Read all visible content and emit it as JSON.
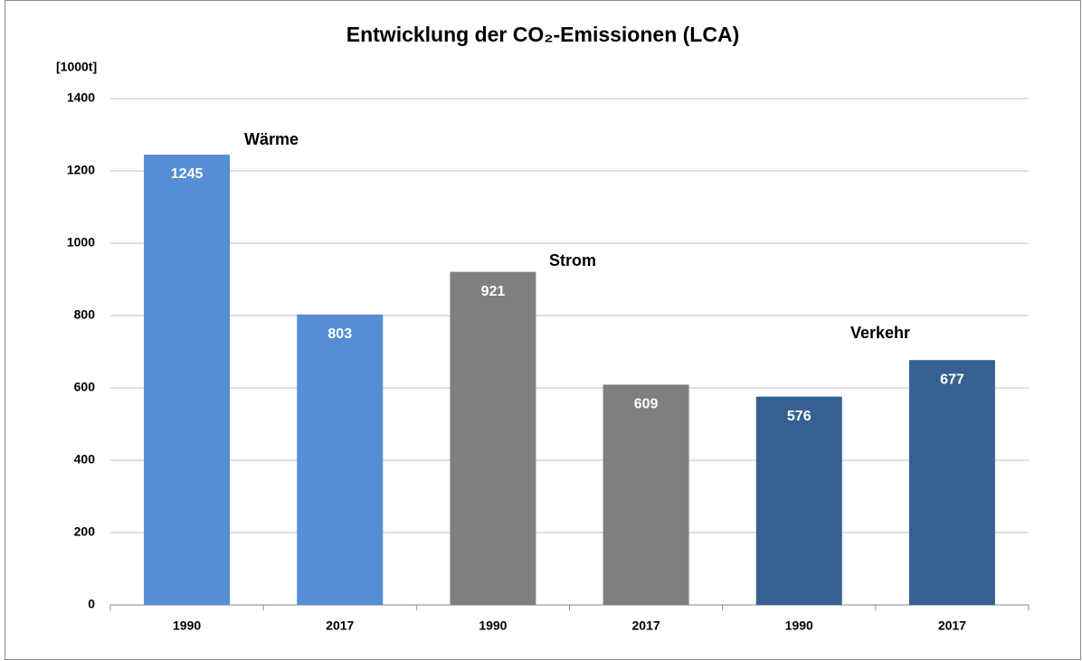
{
  "chart_data": {
    "type": "bar",
    "title": "Entwicklung der CO₂-Emissionen (LCA)",
    "y_label": "[1000t]",
    "categories": [
      "1990",
      "2017",
      "1990",
      "2017",
      "1990",
      "2017"
    ],
    "values": [
      1245,
      803,
      921,
      609,
      576,
      677
    ],
    "colors": [
      "#558ed5",
      "#558ed5",
      "#7f7f7f",
      "#7f7f7f",
      "#376092",
      "#376092"
    ],
    "annotations": [
      "Wärme",
      "Strom",
      "Verkehr"
    ],
    "ylim": [
      0,
      1400
    ],
    "yticks": [
      0,
      200,
      400,
      600,
      800,
      1000,
      1200,
      1400
    ],
    "grid": true
  }
}
